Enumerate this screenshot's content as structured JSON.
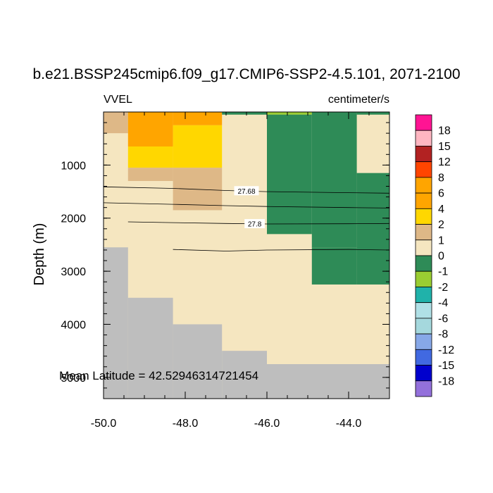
{
  "chart_data": {
    "type": "heatmap",
    "title": "b.e21.BSSP245cmip6.f09_g17.CMIP6-SSP2-4.5.101, 2071-2100",
    "left_label": "VVEL",
    "right_label": "centimeter/s",
    "ylabel": "Depth (m)",
    "xlabel": "",
    "xlim": [
      -50.0,
      -43.0
    ],
    "ylim": [
      0,
      5400
    ],
    "y_reversed": true,
    "x_ticks": [
      {
        "value": -50.0,
        "label": "-50.0"
      },
      {
        "value": -48.0,
        "label": "-48.0"
      },
      {
        "value": -46.0,
        "label": "-46.0"
      },
      {
        "value": -44.0,
        "label": "-44.0"
      }
    ],
    "y_ticks": [
      {
        "value": 1000,
        "label": "1000"
      },
      {
        "value": 2000,
        "label": "2000"
      },
      {
        "value": 3000,
        "label": "3000"
      },
      {
        "value": 4000,
        "label": "4000"
      },
      {
        "value": 5000,
        "label": "5000"
      }
    ],
    "annotation": "Mean Latitude = 42.52946314721454",
    "missing_color": "#bebebe",
    "colorbar": {
      "colors": [
        "#ff1493",
        "#ffb6c1",
        "#b22222",
        "#ff4500",
        "#ffa500",
        "#ffa500",
        "#ffd700",
        "#deb887",
        "#f5e6c0",
        "#2e8b57",
        "#9acd32",
        "#20b2aa",
        "#b0e0e6",
        "#a5d8dd",
        "#87a8e8",
        "#4169e1",
        "#0000cd",
        "#9370db"
      ],
      "labels": [
        "18",
        "15",
        "12",
        "8",
        "6",
        "4",
        "2",
        "1",
        "0",
        "-1",
        "-2",
        "-4",
        "-6",
        "-8",
        "-12",
        "-15",
        "-18"
      ]
    },
    "cells": [
      {
        "x0": -50.0,
        "x1": -49.4,
        "y0": 0,
        "y1": 400,
        "color": "#deb887"
      },
      {
        "x0": -49.4,
        "x1": -48.3,
        "y0": 0,
        "y1": 650,
        "color": "#ffa500"
      },
      {
        "x0": -48.3,
        "x1": -47.1,
        "y0": 0,
        "y1": 250,
        "color": "#ffa500"
      },
      {
        "x0": -48.3,
        "x1": -47.1,
        "y0": 250,
        "y1": 1050,
        "color": "#ffd700"
      },
      {
        "x0": -49.4,
        "x1": -48.3,
        "y0": 650,
        "y1": 1050,
        "color": "#ffd700"
      },
      {
        "x0": -49.4,
        "x1": -48.3,
        "y0": 1050,
        "y1": 1300,
        "color": "#deb887"
      },
      {
        "x0": -48.3,
        "x1": -47.1,
        "y0": 1050,
        "y1": 1850,
        "color": "#deb887"
      },
      {
        "x0": -47.1,
        "x1": -46.0,
        "y0": 0,
        "y1": 50,
        "color": "#2e8b57"
      },
      {
        "x0": -46.0,
        "x1": -44.9,
        "y0": 0,
        "y1": 50,
        "color": "#9acd32"
      },
      {
        "x0": -46.0,
        "x1": -44.9,
        "y0": 50,
        "y1": 2300,
        "color": "#2e8b57"
      },
      {
        "x0": -44.9,
        "x1": -43.8,
        "y0": 0,
        "y1": 2550,
        "color": "#2e8b57"
      },
      {
        "x0": -43.8,
        "x1": -43.0,
        "y0": 0,
        "y1": 50,
        "color": "#2e8b57"
      },
      {
        "x0": -43.8,
        "x1": -43.0,
        "y0": 1150,
        "y1": 3250,
        "color": "#2e8b57"
      },
      {
        "x0": -44.9,
        "x1": -43.8,
        "y0": 2550,
        "y1": 3250,
        "color": "#2e8b57"
      },
      {
        "x0": -50.0,
        "x1": -49.4,
        "y0": 2550,
        "y1": 5400,
        "color": "#bebebe"
      },
      {
        "x0": -49.4,
        "x1": -48.3,
        "y0": 3500,
        "y1": 5400,
        "color": "#bebebe"
      },
      {
        "x0": -48.3,
        "x1": -47.1,
        "y0": 4000,
        "y1": 5400,
        "color": "#bebebe"
      },
      {
        "x0": -47.1,
        "x1": -46.0,
        "y0": 4500,
        "y1": 5400,
        "color": "#bebebe"
      },
      {
        "x0": -46.0,
        "x1": -43.0,
        "y0": 4750,
        "y1": 5400,
        "color": "#bebebe"
      }
    ],
    "contours": [
      {
        "label": "27.68",
        "label_at": [
          -46.5,
          1490
        ],
        "points": [
          [
            -50.0,
            1410
          ],
          [
            -48.3,
            1440
          ],
          [
            -47.0,
            1480
          ],
          [
            -46.0,
            1500
          ],
          [
            -44.0,
            1520
          ],
          [
            -43.0,
            1530
          ]
        ]
      },
      {
        "label": "",
        "label_at": null,
        "points": [
          [
            -50.0,
            1710
          ],
          [
            -48.3,
            1740
          ],
          [
            -47.0,
            1765
          ],
          [
            -46.0,
            1780
          ],
          [
            -44.0,
            1800
          ],
          [
            -43.0,
            1810
          ]
        ]
      },
      {
        "label": "27.8",
        "label_at": [
          -46.3,
          2110
        ],
        "points": [
          [
            -49.4,
            2070
          ],
          [
            -48.3,
            2085
          ],
          [
            -47.0,
            2100
          ],
          [
            -46.0,
            2110
          ],
          [
            -44.0,
            2105
          ],
          [
            -43.0,
            2100
          ]
        ]
      },
      {
        "label": "",
        "label_at": null,
        "points": [
          [
            -48.3,
            2590
          ],
          [
            -47.0,
            2620
          ],
          [
            -46.0,
            2600
          ],
          [
            -44.0,
            2590
          ],
          [
            -43.0,
            2600
          ]
        ]
      }
    ]
  }
}
